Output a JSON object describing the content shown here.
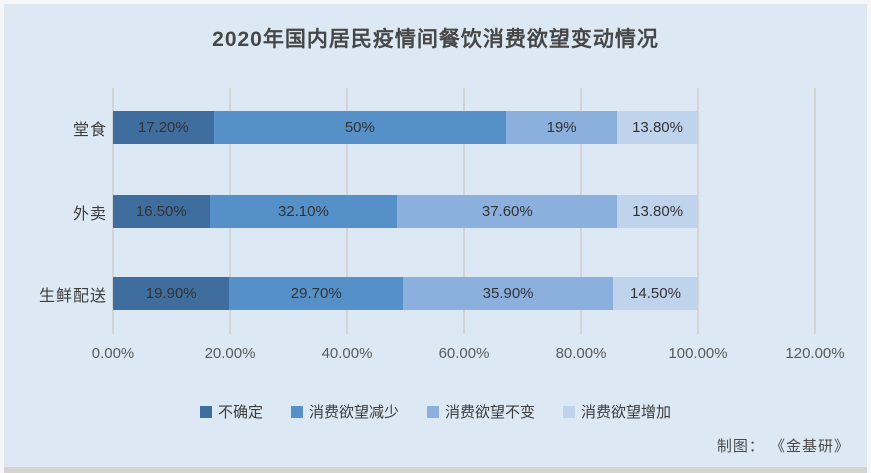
{
  "chart_data": {
    "type": "bar",
    "orientation": "horizontal-stacked",
    "title": "2020年国内居民疫情间餐饮消费欲望变动情况",
    "categories": [
      "堂食",
      "外卖",
      "生鲜配送"
    ],
    "series": [
      {
        "name": "不确定",
        "color": "#3e6d9e",
        "values": [
          17.2,
          16.5,
          19.9
        ],
        "labels": [
          "17.20%",
          "16.50%",
          "19.90%"
        ]
      },
      {
        "name": "消费欲望减少",
        "color": "#5590c8",
        "values": [
          50.0,
          32.1,
          29.7
        ],
        "labels": [
          "50%",
          "32.10%",
          "29.70%"
        ]
      },
      {
        "name": "消费欲望不变",
        "color": "#8cb0dd",
        "values": [
          19.0,
          37.6,
          35.9
        ],
        "labels": [
          "19%",
          "37.60%",
          "35.90%"
        ]
      },
      {
        "name": "消费欲望增加",
        "color": "#c0d3ec",
        "values": [
          13.8,
          13.8,
          14.5
        ],
        "labels": [
          "13.80%",
          "13.80%",
          "14.50%"
        ]
      }
    ],
    "x_axis": {
      "ticks": [
        "0.00%",
        "20.00%",
        "40.00%",
        "60.00%",
        "80.00%",
        "100.00%",
        "120.00%"
      ],
      "min": 0,
      "max": 120,
      "grid": true
    },
    "legend_position": "bottom",
    "source": "制图： 《金基研》"
  },
  "colors": {
    "card_background": "#dce9f5",
    "gridline": "#d2d4d6",
    "title_text": "#474747",
    "label_text": "#333333",
    "axis_text": "#5a5a5a",
    "bottom_shadow": "#d4d4d4"
  }
}
